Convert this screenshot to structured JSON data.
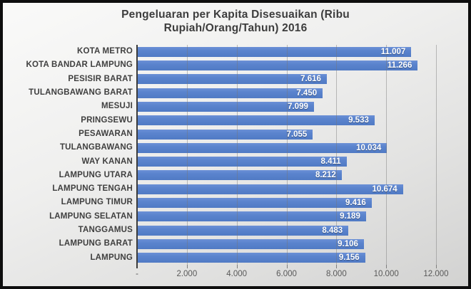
{
  "title": {
    "line1": "Pengeluaran per Kapita Disesuaikan (Ribu",
    "line2": "Rupiah/Orang/Tahun)  2016"
  },
  "chart_data": {
    "type": "bar",
    "orientation": "horizontal",
    "title": "Pengeluaran per Kapita Disesuaikan (Ribu Rupiah/Orang/Tahun) 2016",
    "categories": [
      "KOTA METRO",
      "KOTA BANDAR LAMPUNG",
      "PESISIR BARAT",
      "TULANGBAWANG BARAT",
      "MESUJI",
      "PRINGSEWU",
      "PESAWARAN",
      "TULANGBAWANG",
      "WAY KANAN",
      "LAMPUNG UTARA",
      "LAMPUNG TENGAH",
      "LAMPUNG TIMUR",
      "LAMPUNG SELATAN",
      "TANGGAMUS",
      "LAMPUNG BARAT",
      "LAMPUNG"
    ],
    "values": [
      11007,
      11266,
      7616,
      7450,
      7099,
      9533,
      7055,
      10034,
      8411,
      8212,
      10674,
      9416,
      9189,
      8483,
      9106,
      9156
    ],
    "value_labels": [
      "11.007",
      "11.266",
      "7.616",
      "7.450",
      "7.099",
      "9.533",
      "7.055",
      "10.034",
      "8.411",
      "8.212",
      "10.674",
      "9.416",
      "9.189",
      "8.483",
      "9.106",
      "9.156"
    ],
    "xlabel": "",
    "ylabel": "",
    "xlim": [
      0,
      12000
    ],
    "x_ticks": [
      0,
      2000,
      4000,
      6000,
      8000,
      10000,
      12000
    ],
    "x_tick_labels": [
      "-",
      "2.000",
      "4.000",
      "6.000",
      "8.000",
      "10.000",
      "12.000"
    ],
    "grid": "vertical",
    "legend": "none",
    "bar_color": "#5b84ce",
    "value_label_color": "#ffffff",
    "category_label_color": "#3f3f3f",
    "axis_label_color": "#595959",
    "title_color": "#3d3d3d"
  }
}
